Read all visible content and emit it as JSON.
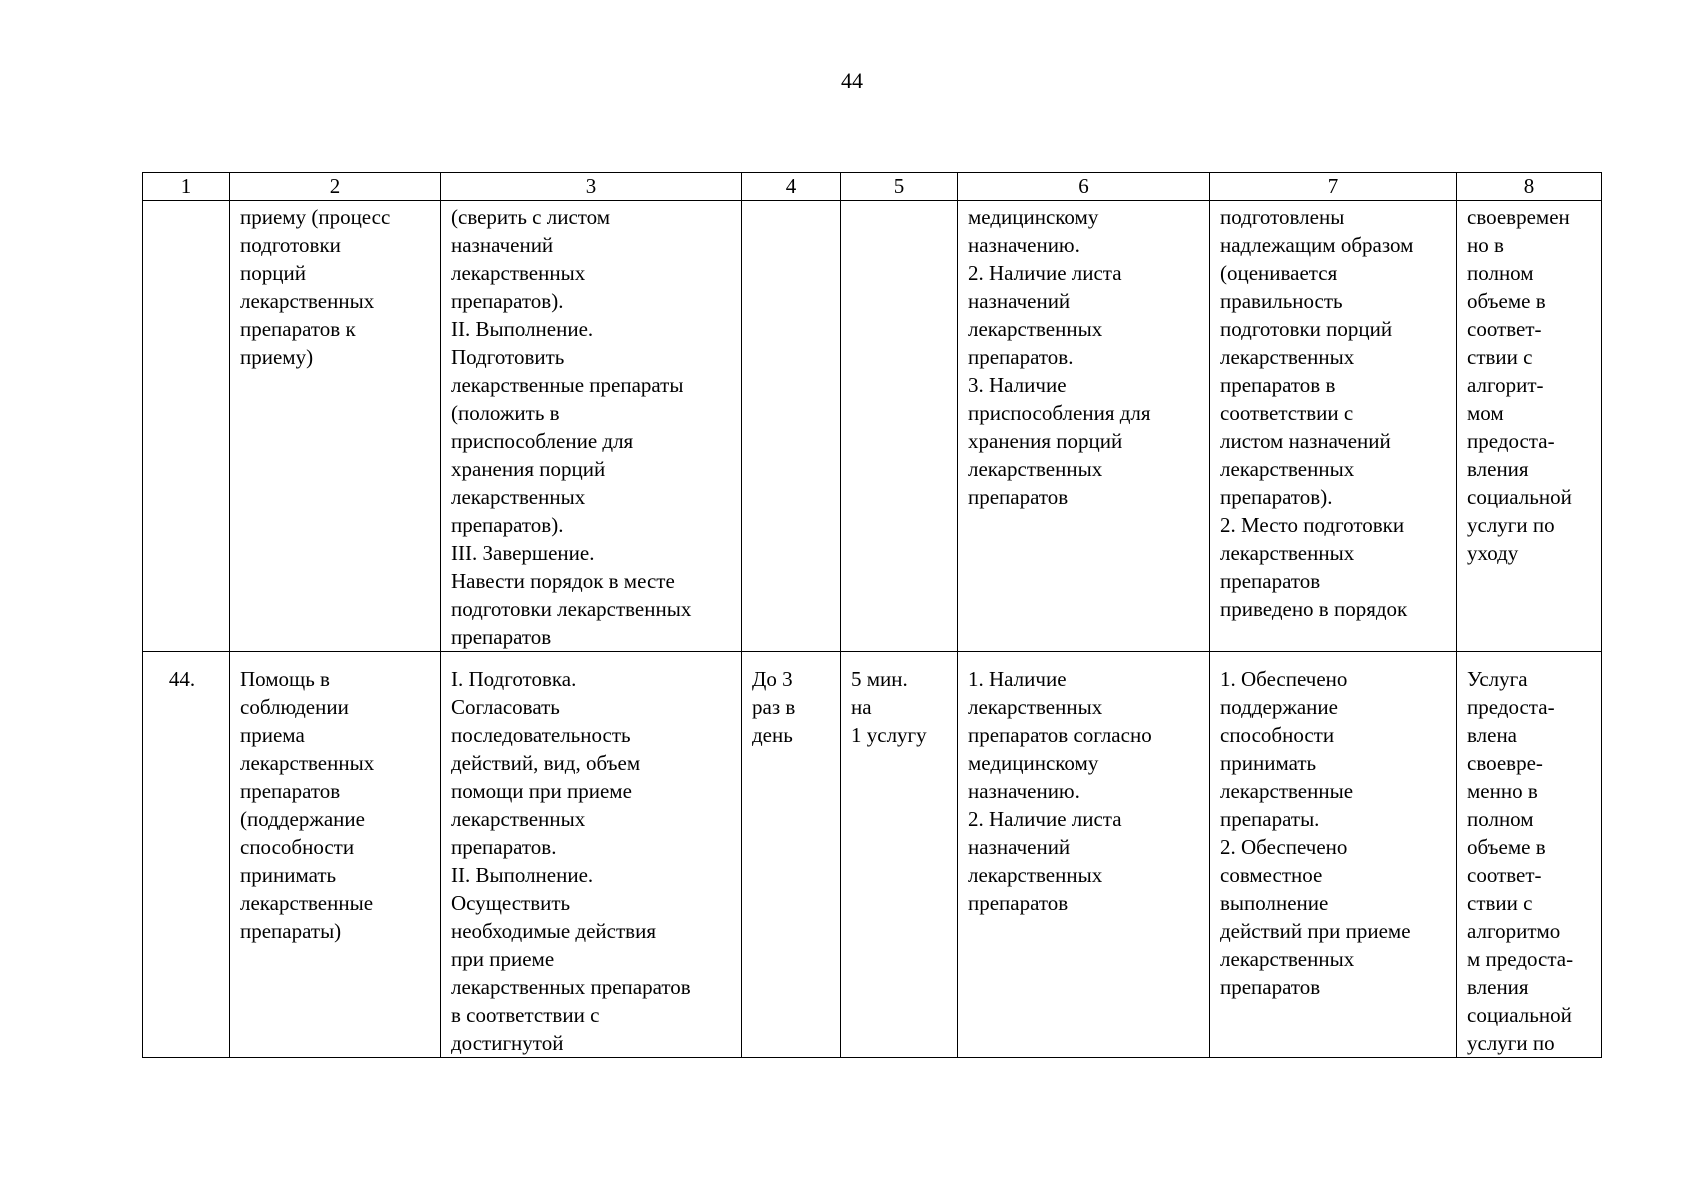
{
  "page_number": "44",
  "table": {
    "header": [
      "1",
      "2",
      "3",
      "4",
      "5",
      "6",
      "7",
      "8"
    ],
    "rows": [
      [
        "",
        "приему (процесс\nподготовки\nпорций\nлекарственных\nпрепаратов к\nприему)",
        "(сверить с листом\nназначений\nлекарственных\nпрепаратов).\nII. Выполнение.\nПодготовить\nлекарственные препараты\n(положить в\nприспособление для\nхранения порций\nлекарственных\nпрепаратов).\nIII. Завершение.\nНавести порядок в месте\nподготовки лекарственных\nпрепаратов",
        "",
        "",
        "медицинскому\nназначению.\n2. Наличие листа\nназначений\nлекарственных\nпрепаратов.\n3. Наличие\nприспособления для\nхранения порций\nлекарственных\nпрепаратов",
        "подготовлены\nнадлежащим образом\n(оценивается\nправильность\nподготовки порций\nлекарственных\nпрепаратов в\nсоответствии с\nлистом назначений\nлекарственных\nпрепаратов).\n2. Место подготовки\nлекарственных\nпрепаратов\nприведено в порядок",
        "своевремен\nно в\nполном\nобъеме в\nсоответ-\nствии с\nалгорит-\nмом\nпредоста-\nвления\nсоциальной\nуслуги по\nуходу"
      ],
      [
        "44.",
        "Помощь в\nсоблюдении\nприема\nлекарственных\nпрепаратов\n(поддержание\nспособности\nпринимать\nлекарственные\nпрепараты)",
        "I. Подготовка.\nСогласовать\nпоследовательность\nдействий, вид, объем\nпомощи при приеме\nлекарственных\nпрепаратов.\nII. Выполнение.\nОсуществить\nнеобходимые действия\nпри приеме\nлекарственных препаратов\nв соответствии с\nдостигнутой",
        "До 3\nраз в\nдень",
        "5 мин.\nна\n1 услугу",
        "1. Наличие\nлекарственных\nпрепаратов согласно\nмедицинскому\nназначению.\n2. Наличие листа\nназначений\nлекарственных\nпрепаратов",
        "1. Обеспечено\nподдержание\nспособности\nпринимать\nлекарственные\nпрепараты.\n2. Обеспечено\nсовместное\nвыполнение\nдействий при приеме\nлекарственных\nпрепаратов",
        "Услуга\nпредоста-\nвлена\nсвоевре-\nменно в\nполном\nобъеме в\nсоответ-\nствии с\nалгоритмо\nм предоста-\nвления\nсоциальной\nуслуги по"
      ]
    ]
  }
}
